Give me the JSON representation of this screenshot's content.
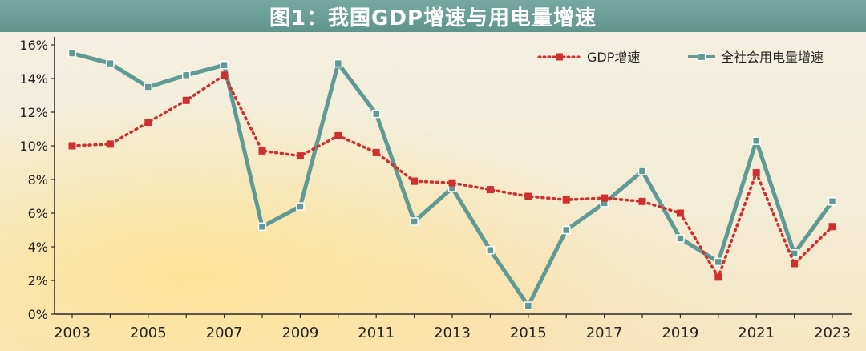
{
  "title": "图1：我国GDP增速与用电量增速",
  "colors": {
    "title_bg": "#679d96",
    "gdp": "#cf2f2f",
    "power": "#5f9a94",
    "axis": "#2a2a2a",
    "background": "#f3ecd6"
  },
  "chart_data": {
    "type": "line",
    "x": [
      2003,
      2004,
      2005,
      2006,
      2007,
      2008,
      2009,
      2010,
      2011,
      2012,
      2013,
      2014,
      2015,
      2016,
      2017,
      2018,
      2019,
      2020,
      2021,
      2022,
      2023
    ],
    "x_tick_labels": [
      "2003",
      "2005",
      "2007",
      "2009",
      "2011",
      "2013",
      "2015",
      "2017",
      "2019",
      "2021",
      "2023"
    ],
    "y_tick_labels": [
      "0%",
      "2%",
      "4%",
      "6%",
      "8%",
      "10%",
      "12%",
      "14%",
      "16%"
    ],
    "ylim": [
      0,
      16
    ],
    "ytick_step": 2,
    "grid": false,
    "legend_position": "top-right",
    "series": [
      {
        "name": "GDP增速",
        "style": "dotted-square",
        "color": "#cf2f2f",
        "values": [
          10.0,
          10.1,
          11.4,
          12.7,
          14.2,
          9.7,
          9.4,
          10.6,
          9.6,
          7.9,
          7.8,
          7.4,
          7.0,
          6.8,
          6.9,
          6.7,
          6.0,
          2.2,
          8.4,
          3.0,
          5.2
        ]
      },
      {
        "name": "全社会用电量增速",
        "style": "solid-square",
        "color": "#5f9a94",
        "values": [
          15.5,
          14.9,
          13.5,
          14.2,
          14.8,
          5.2,
          6.4,
          14.9,
          11.9,
          5.5,
          7.5,
          3.8,
          0.5,
          5.0,
          6.6,
          8.5,
          4.5,
          3.1,
          10.3,
          3.6,
          6.7
        ]
      }
    ]
  }
}
